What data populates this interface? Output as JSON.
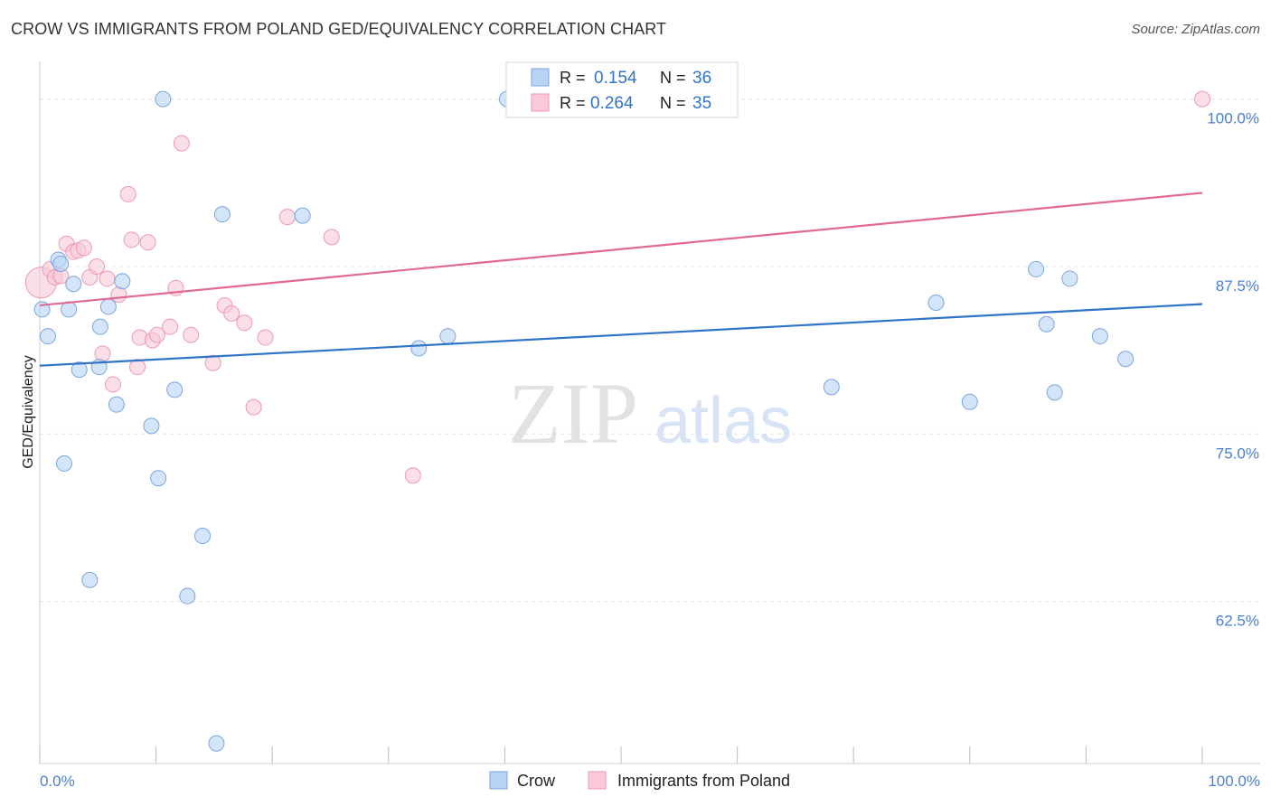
{
  "header": {
    "title": "CROW VS IMMIGRANTS FROM POLAND GED/EQUIVALENCY CORRELATION CHART",
    "source": "Source: ZipAtlas.com"
  },
  "watermark": {
    "zip": "ZIP",
    "atlas": "atlas"
  },
  "legend_box": {
    "rows": [
      {
        "r_label": "R =",
        "r_value": "0.154",
        "n_label": "N =",
        "n_value": "36"
      },
      {
        "r_label": "R =",
        "r_value": "0.264",
        "n_label": "N =",
        "n_value": "35"
      }
    ]
  },
  "colors": {
    "crow_fill": "#b9d3f5",
    "crow_stroke": "#7aa6de",
    "crow_line": "#2f74c8",
    "poland_fill": "#f9c9d8",
    "poland_stroke": "#ee98b3",
    "poland_line": "#e06893",
    "axis_text": "#4a7fd0",
    "grid": "#e3e3e3"
  },
  "chart_data": {
    "type": "scatter",
    "title": "CROW VS IMMIGRANTS FROM POLAND GED/EQUIVALENCY CORRELATION CHART",
    "xlabel": "",
    "ylabel": "GED/Equivalency",
    "xlim": [
      0,
      100
    ],
    "ylim": [
      50.4,
      102
    ],
    "x_tick_labels": [
      "0.0%",
      "100.0%"
    ],
    "y_ticks": [
      62.5,
      75.0,
      87.5,
      100.0
    ],
    "y_tick_labels": [
      "62.5%",
      "75.0%",
      "87.5%",
      "100.0%"
    ],
    "grid": "horizontal dashed",
    "legend_position": "bottom-center",
    "series": [
      {
        "name": "Crow",
        "points": [
          [
            0.2,
            84.3
          ],
          [
            0.7,
            82.3
          ],
          [
            1.6,
            88.0
          ],
          [
            1.8,
            87.7
          ],
          [
            2.1,
            72.8
          ],
          [
            2.5,
            84.3
          ],
          [
            2.9,
            86.2
          ],
          [
            3.4,
            79.8
          ],
          [
            4.3,
            64.1
          ],
          [
            5.1,
            80.0
          ],
          [
            5.2,
            83.0
          ],
          [
            5.9,
            84.5
          ],
          [
            6.6,
            77.2
          ],
          [
            7.1,
            86.4
          ],
          [
            9.6,
            75.6
          ],
          [
            10.2,
            71.7
          ],
          [
            10.6,
            100.0
          ],
          [
            11.6,
            78.3
          ],
          [
            12.7,
            62.9
          ],
          [
            14.0,
            67.4
          ],
          [
            15.2,
            51.9
          ],
          [
            15.7,
            91.4
          ],
          [
            22.6,
            91.3
          ],
          [
            32.6,
            81.4
          ],
          [
            35.1,
            82.3
          ],
          [
            40.2,
            100.0
          ],
          [
            56.0,
            100.0
          ],
          [
            68.1,
            78.5
          ],
          [
            77.1,
            84.8
          ],
          [
            80.0,
            77.4
          ],
          [
            85.7,
            87.3
          ],
          [
            86.6,
            83.2
          ],
          [
            87.3,
            78.1
          ],
          [
            88.6,
            86.6
          ],
          [
            91.2,
            82.3
          ],
          [
            93.4,
            80.6
          ]
        ],
        "trend": {
          "x": [
            0,
            100
          ],
          "y": [
            80.1,
            84.7
          ]
        }
      },
      {
        "name": "Immigrants from Poland",
        "points": [
          [
            0.1,
            86.3
          ],
          [
            0.9,
            87.3
          ],
          [
            1.3,
            86.7
          ],
          [
            1.8,
            86.8
          ],
          [
            2.3,
            89.2
          ],
          [
            2.9,
            88.6
          ],
          [
            3.3,
            88.7
          ],
          [
            3.8,
            88.9
          ],
          [
            4.3,
            86.7
          ],
          [
            4.9,
            87.5
          ],
          [
            5.4,
            81.0
          ],
          [
            5.8,
            86.6
          ],
          [
            6.3,
            78.7
          ],
          [
            6.8,
            85.4
          ],
          [
            7.6,
            92.9
          ],
          [
            7.9,
            89.5
          ],
          [
            8.4,
            80.0
          ],
          [
            8.6,
            82.2
          ],
          [
            9.3,
            89.3
          ],
          [
            9.7,
            82.0
          ],
          [
            10.1,
            82.4
          ],
          [
            11.2,
            83.0
          ],
          [
            11.7,
            85.9
          ],
          [
            12.2,
            96.7
          ],
          [
            13.0,
            82.4
          ],
          [
            14.9,
            80.3
          ],
          [
            15.9,
            84.6
          ],
          [
            16.5,
            84.0
          ],
          [
            17.6,
            83.3
          ],
          [
            18.4,
            77.0
          ],
          [
            19.4,
            82.2
          ],
          [
            21.3,
            91.2
          ],
          [
            25.1,
            89.7
          ],
          [
            32.1,
            71.9
          ],
          [
            100.0,
            100.0
          ]
        ],
        "trend": {
          "x": [
            0,
            100
          ],
          "y": [
            84.6,
            93.0
          ]
        }
      }
    ]
  }
}
